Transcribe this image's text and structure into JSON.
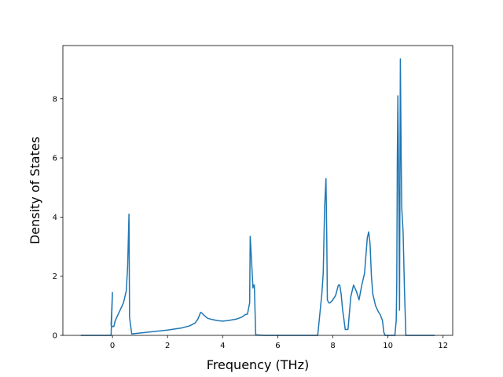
{
  "chart_data": {
    "type": "line",
    "xlabel": "Frequency (THz)",
    "ylabel": "Density of States",
    "xlim": [
      -1.8,
      12.35
    ],
    "ylim": [
      0,
      9.8
    ],
    "xticks": [
      0,
      2,
      4,
      6,
      8,
      10,
      12
    ],
    "yticks": [
      0,
      2,
      4,
      6,
      8
    ],
    "grid": false,
    "line_color": "#1f77b4",
    "series": [
      {
        "x": [
          -1.15,
          -0.05,
          -0.0,
          -0.05,
          0.0,
          0.05,
          0.1,
          0.25,
          0.4,
          0.5,
          0.55,
          0.6,
          0.62,
          0.7,
          1.0,
          1.5,
          2.0,
          2.5,
          2.8,
          3.0,
          3.1,
          3.2,
          3.25,
          3.3,
          3.45,
          3.6,
          3.8,
          4.0,
          4.2,
          4.5,
          4.7,
          4.82,
          4.9,
          4.98,
          5.0,
          5.05,
          5.1,
          5.12,
          5.15,
          5.17,
          5.2,
          5.5,
          6.0,
          6.5,
          7.0,
          7.45,
          7.6,
          7.65,
          7.7,
          7.75,
          7.78,
          7.8,
          7.85,
          7.9,
          8.0,
          8.1,
          8.2,
          8.25,
          8.3,
          8.35,
          8.45,
          8.55,
          8.65,
          8.75,
          8.85,
          8.95,
          9.05,
          9.15,
          9.25,
          9.3,
          9.35,
          9.4,
          9.45,
          9.55,
          9.65,
          9.72,
          9.8,
          9.85,
          9.9,
          10.0,
          10.05,
          10.1,
          10.15,
          10.2,
          10.25,
          10.3,
          10.32,
          10.34,
          10.36,
          10.4,
          10.42,
          10.45,
          10.48,
          10.5,
          10.55,
          10.6,
          10.65,
          10.8,
          11.2,
          11.7
        ],
        "y": [
          0,
          0,
          1.45,
          0.35,
          0.3,
          0.3,
          0.5,
          0.8,
          1.1,
          1.5,
          2.3,
          4.1,
          0.6,
          0.05,
          0.08,
          0.13,
          0.18,
          0.25,
          0.32,
          0.42,
          0.55,
          0.78,
          0.75,
          0.7,
          0.58,
          0.54,
          0.5,
          0.48,
          0.5,
          0.55,
          0.62,
          0.7,
          0.72,
          1.1,
          3.35,
          2.5,
          1.6,
          1.7,
          1.7,
          1.0,
          0.02,
          0,
          0,
          0,
          0,
          0,
          1.4,
          2.1,
          4.3,
          5.3,
          3.2,
          1.2,
          1.1,
          1.1,
          1.2,
          1.35,
          1.7,
          1.7,
          1.4,
          0.9,
          0.2,
          0.2,
          1.3,
          1.7,
          1.5,
          1.2,
          1.7,
          2.1,
          3.3,
          3.5,
          3.1,
          2.0,
          1.4,
          1.0,
          0.8,
          0.7,
          0.5,
          0.1,
          0,
          0,
          0,
          0,
          0,
          0,
          0,
          0.5,
          1.8,
          6.0,
          8.1,
          4.0,
          0.85,
          9.35,
          6.0,
          4.3,
          3.5,
          1.5,
          0,
          0,
          0,
          0
        ]
      }
    ]
  }
}
